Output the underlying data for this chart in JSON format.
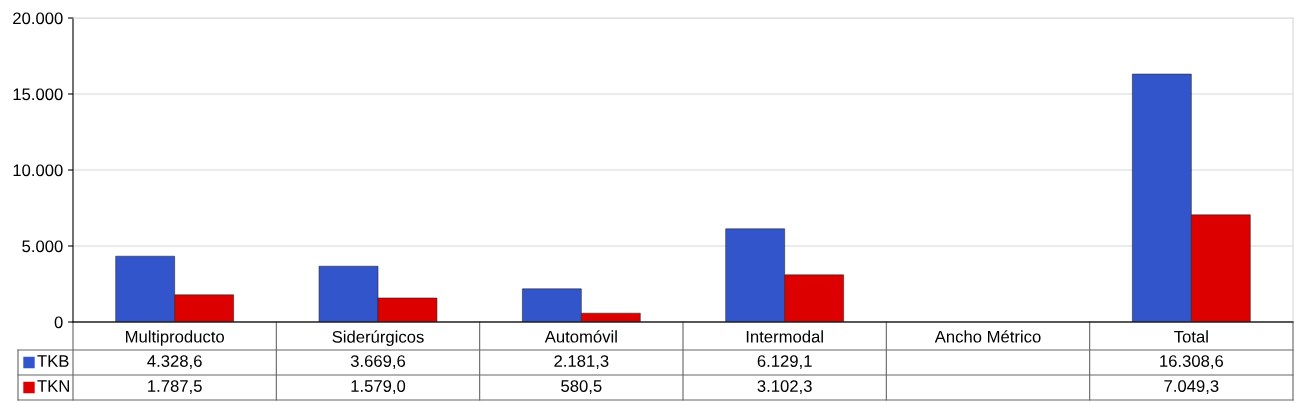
{
  "chart_data": {
    "type": "bar",
    "categories": [
      "Multiproducto",
      "Siderúrgicos",
      "Automóvil",
      "Intermodal",
      "Ancho Métrico",
      "Total"
    ],
    "series": [
      {
        "name": "TKB",
        "color": "#3355cc",
        "values": [
          4328.6,
          3669.6,
          2181.3,
          6129.1,
          null,
          16308.6
        ],
        "value_labels": [
          "4.328,6",
          "3.669,6",
          "2.181,3",
          "6.129,1",
          null,
          "16.308,6"
        ]
      },
      {
        "name": "TKN",
        "color": "#dd0000",
        "values": [
          1787.5,
          1579.0,
          580.5,
          3102.3,
          null,
          7049.3
        ],
        "value_labels": [
          "1.787,5",
          "1.579,0",
          "580,5",
          "3.102,3",
          null,
          "7.049,3"
        ]
      }
    ],
    "ylim": [
      0,
      20000
    ],
    "yticks": [
      {
        "value": 0,
        "label": "0"
      },
      {
        "value": 5000,
        "label": "5.000"
      },
      {
        "value": 10000,
        "label": "10.000"
      },
      {
        "value": 15000,
        "label": "15.000"
      },
      {
        "value": 20000,
        "label": "20.000"
      }
    ],
    "grid": "y",
    "legend": "bottom left"
  }
}
